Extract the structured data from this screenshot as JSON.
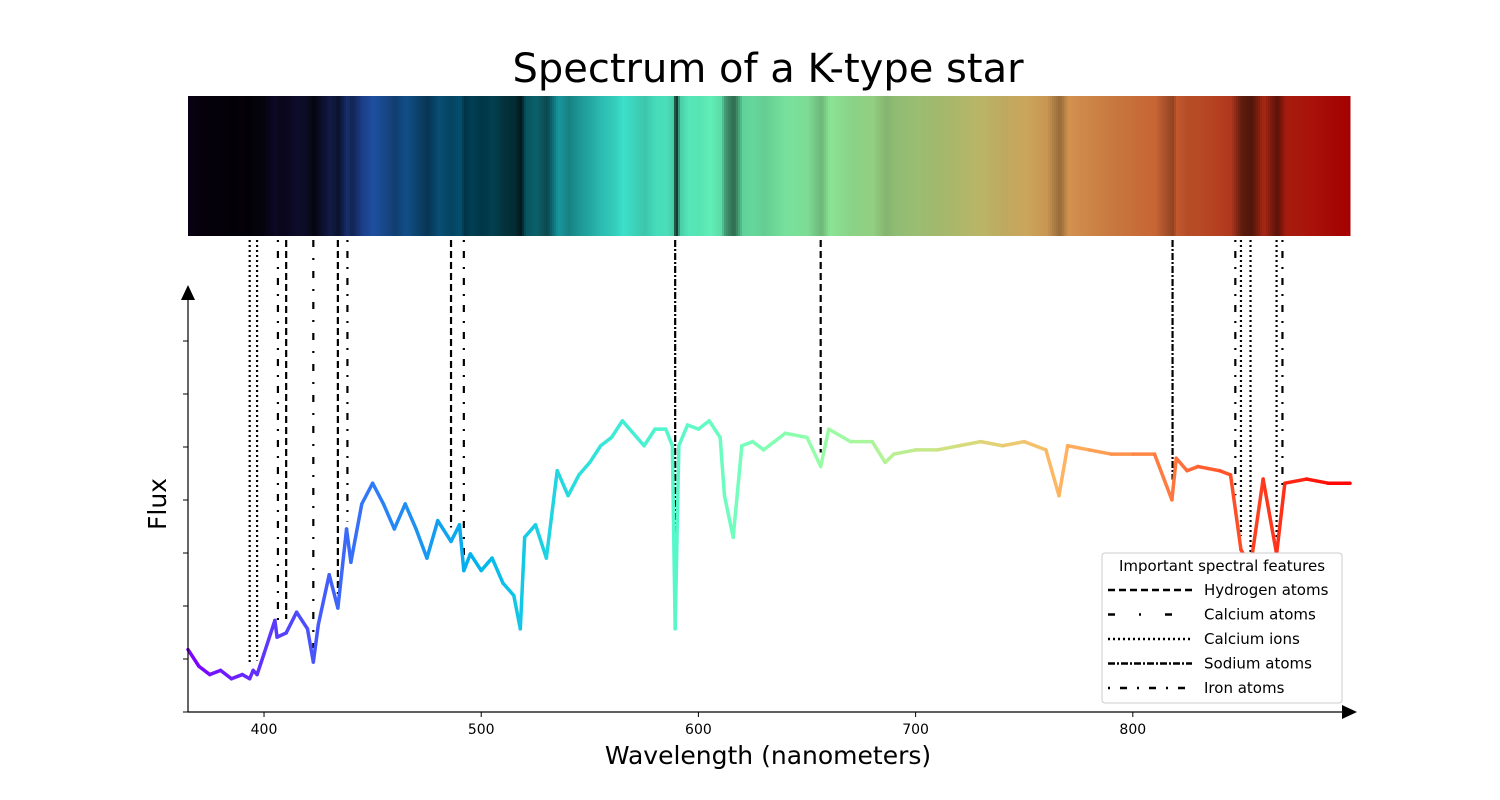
{
  "chart_data": {
    "type": "line",
    "title": "Spectrum of a K-type star",
    "xlabel": "Wavelength (nanometers)",
    "ylabel": "Flux",
    "xlim": [
      365,
      900
    ],
    "ylim": [
      0,
      1
    ],
    "x_ticks": [
      400,
      500,
      600,
      700,
      800
    ],
    "x_tick_labels": [
      "400",
      "500",
      "600",
      "700",
      "800"
    ],
    "y_tick_labels_shown": false,
    "grid": false,
    "colormap": "rainbow",
    "series": [
      {
        "x": [
          365,
          370,
          375,
          380,
          385,
          390,
          393.4,
          395,
          396.8,
          400,
          405,
          406,
          410.2,
          415,
          420,
          422.7,
          425,
          430,
          434,
          438,
          440,
          445,
          450,
          455,
          460,
          465,
          470,
          475,
          480,
          486.1,
          490,
          492,
          495,
          500,
          505,
          510,
          515,
          518,
          520,
          525,
          530,
          535,
          540,
          545,
          550,
          555,
          560,
          565,
          570,
          575,
          580,
          585,
          588,
          589.3,
          591,
          595,
          600,
          605,
          610,
          612,
          616,
          620,
          625,
          630,
          640,
          650,
          656.3,
          660,
          670,
          680,
          686,
          690,
          700,
          710,
          720,
          730,
          740,
          750,
          760,
          766,
          770,
          780,
          790,
          800,
          810,
          818,
          820,
          825,
          830,
          840,
          845,
          849.8,
          854.2,
          860,
          866.2,
          870,
          880,
          890,
          900
        ],
        "y": [
          0.15,
          0.11,
          0.09,
          0.1,
          0.08,
          0.09,
          0.08,
          0.1,
          0.09,
          0.14,
          0.22,
          0.18,
          0.19,
          0.24,
          0.2,
          0.12,
          0.21,
          0.33,
          0.25,
          0.44,
          0.36,
          0.5,
          0.55,
          0.5,
          0.44,
          0.5,
          0.44,
          0.37,
          0.46,
          0.41,
          0.45,
          0.34,
          0.38,
          0.34,
          0.37,
          0.31,
          0.28,
          0.2,
          0.42,
          0.45,
          0.37,
          0.58,
          0.52,
          0.57,
          0.6,
          0.64,
          0.66,
          0.7,
          0.67,
          0.64,
          0.68,
          0.68,
          0.64,
          0.2,
          0.64,
          0.69,
          0.68,
          0.7,
          0.66,
          0.52,
          0.42,
          0.64,
          0.65,
          0.63,
          0.67,
          0.66,
          0.59,
          0.68,
          0.65,
          0.65,
          0.6,
          0.62,
          0.63,
          0.63,
          0.64,
          0.65,
          0.64,
          0.65,
          0.63,
          0.52,
          0.64,
          0.63,
          0.62,
          0.62,
          0.62,
          0.51,
          0.61,
          0.58,
          0.59,
          0.58,
          0.57,
          0.39,
          0.35,
          0.56,
          0.38,
          0.55,
          0.56,
          0.55,
          0.55
        ]
      }
    ],
    "spectral_lines": [
      {
        "element": "Calcium ions",
        "wavelengths": [
          393.4,
          396.8
        ]
      },
      {
        "element": "Hydrogen atoms",
        "wavelengths": [
          410.2,
          434.0,
          486.1,
          656.3
        ]
      },
      {
        "element": "Calcium atoms",
        "wavelengths": [
          422.7
        ]
      },
      {
        "element": "Sodium atoms",
        "wavelengths": [
          589.3,
          818.3
        ]
      },
      {
        "element": "Iron atoms",
        "wavelengths": [
          406.4,
          438.4,
          492.0
        ]
      },
      {
        "element": "Calcium ions",
        "wavelengths": [
          849.8,
          854.2,
          866.2
        ]
      },
      {
        "element": "Iron atoms",
        "wavelengths": [
          847.2,
          868.9
        ]
      }
    ],
    "legend": {
      "title": "Important spectral features",
      "placement": "lower-right",
      "entries": [
        {
          "label": "Hydrogen atoms",
          "style": "dashed"
        },
        {
          "label": "Calcium atoms",
          "style": "dash-dot-sparse"
        },
        {
          "label": "Calcium ions",
          "style": "dotted"
        },
        {
          "label": "Sodium atoms",
          "style": "dash-dot"
        },
        {
          "label": "Iron atoms",
          "style": "dot-dash-sparse"
        }
      ]
    }
  }
}
